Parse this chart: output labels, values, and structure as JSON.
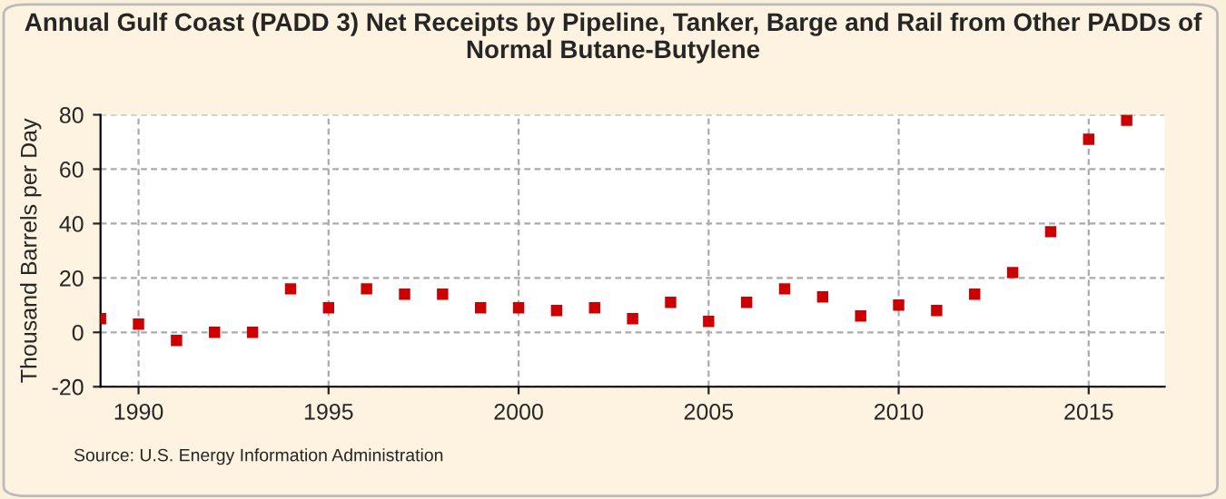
{
  "chart_data": {
    "type": "scatter",
    "title": "Annual Gulf Coast (PADD 3) Net Receipts by Pipeline, Tanker, Barge and Rail from Other PADDs of Normal Butane-Butylene",
    "ylabel": "Thousand Barrels per Day",
    "annotations": [
      "Source: U.S. Energy Information Administration"
    ],
    "x": [
      1989,
      1990,
      1991,
      1992,
      1993,
      1994,
      1995,
      1996,
      1997,
      1998,
      1999,
      2000,
      2001,
      2002,
      2003,
      2004,
      2005,
      2006,
      2007,
      2008,
      2009,
      2010,
      2011,
      2012,
      2013,
      2014,
      2015,
      2016
    ],
    "series": [
      {
        "color": "#cc0000",
        "values": [
          5,
          3,
          -3,
          0,
          0,
          16,
          9,
          16,
          14,
          14,
          9,
          9,
          8,
          9,
          5,
          11,
          4,
          11,
          16,
          13,
          6,
          10,
          8,
          14,
          22,
          37,
          71,
          78
        ]
      }
    ],
    "xlim": [
      1989,
      2017
    ],
    "xticks": [
      1990,
      1995,
      2000,
      2005,
      2010,
      2015
    ],
    "ylim": [
      -20,
      80
    ],
    "yticks": [
      -20,
      0,
      20,
      40,
      60,
      80
    ],
    "grid": true,
    "marker": "square"
  }
}
